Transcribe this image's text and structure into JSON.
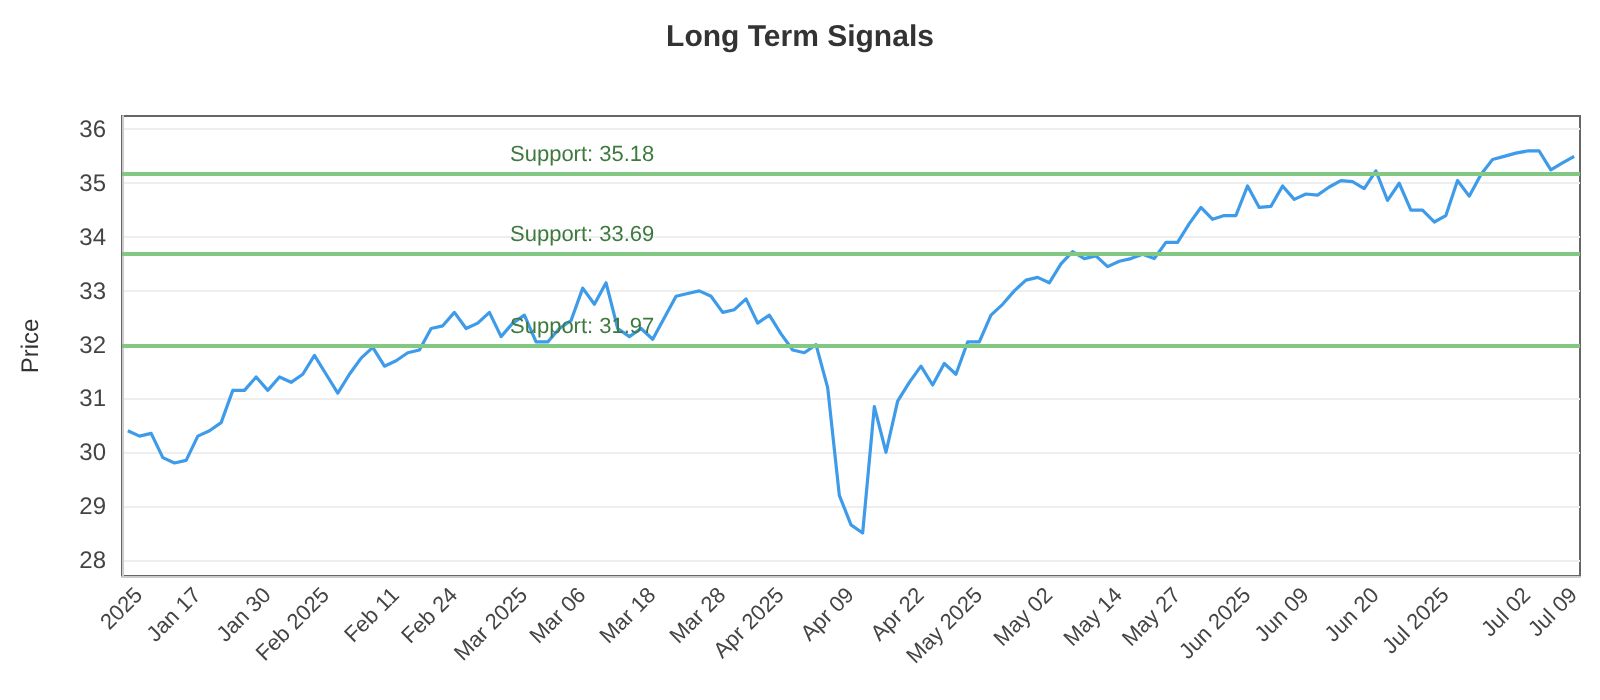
{
  "chart_data": {
    "type": "line",
    "title": "Long Term Signals",
    "ylabel": "Price",
    "categories": [
      null,
      "2025",
      null,
      null,
      null,
      null,
      "Jan 17",
      null,
      null,
      null,
      null,
      null,
      "Jan 30",
      null,
      null,
      null,
      null,
      "Feb 2025",
      null,
      null,
      null,
      null,
      null,
      "Feb 11",
      null,
      null,
      null,
      null,
      "Feb 24",
      null,
      null,
      null,
      null,
      null,
      "Mar 2025",
      null,
      null,
      null,
      null,
      "Mar 06",
      null,
      null,
      null,
      null,
      null,
      "Mar 18",
      null,
      null,
      null,
      null,
      null,
      "Mar 28",
      null,
      null,
      null,
      null,
      "Apr 2025",
      null,
      null,
      null,
      null,
      null,
      "Apr 09",
      null,
      null,
      null,
      null,
      null,
      "Apr 22",
      null,
      null,
      null,
      null,
      "May 2025",
      null,
      null,
      null,
      null,
      null,
      "May 02",
      null,
      null,
      null,
      null,
      null,
      "May 14",
      null,
      null,
      null,
      null,
      "May 27",
      null,
      null,
      null,
      null,
      null,
      "Jun 2025",
      null,
      null,
      null,
      null,
      "Jun 09",
      null,
      null,
      null,
      null,
      null,
      "Jun 20",
      null,
      null,
      null,
      null,
      null,
      "Jul 2025",
      null,
      null,
      null,
      null,
      null,
      null,
      "Jul 02",
      null,
      null,
      null,
      "Jul 09"
    ],
    "series": [
      {
        "color": "#3d9be9",
        "values": [
          30.4,
          30.3,
          30.35,
          29.9,
          29.8,
          29.85,
          30.3,
          30.4,
          30.55,
          31.15,
          31.15,
          31.4,
          31.15,
          31.4,
          31.3,
          31.45,
          31.8,
          31.45,
          31.1,
          31.45,
          31.75,
          31.95,
          31.6,
          31.7,
          31.85,
          31.9,
          32.3,
          32.35,
          32.6,
          32.3,
          32.4,
          32.6,
          32.15,
          32.4,
          32.55,
          32.05,
          32.05,
          32.3,
          32.45,
          33.05,
          32.75,
          33.15,
          32.3,
          32.15,
          32.3,
          32.1,
          32.5,
          32.9,
          32.95,
          33.0,
          32.9,
          32.6,
          32.65,
          32.85,
          32.4,
          32.55,
          32.2,
          31.9,
          31.85,
          32.0,
          31.2,
          29.2,
          28.65,
          28.5,
          30.85,
          30.0,
          30.95,
          31.3,
          31.6,
          31.25,
          31.65,
          31.45,
          32.05,
          32.05,
          32.55,
          32.75,
          33.0,
          33.2,
          33.25,
          33.15,
          33.5,
          33.73,
          33.6,
          33.65,
          33.45,
          33.55,
          33.6,
          33.68,
          33.6,
          33.9,
          33.9,
          34.25,
          34.55,
          34.33,
          34.4,
          34.4,
          34.95,
          34.55,
          34.57,
          34.95,
          34.7,
          34.8,
          34.78,
          34.93,
          35.05,
          35.03,
          34.9,
          35.23,
          34.68,
          35.0,
          34.5,
          34.5,
          34.28,
          34.4,
          35.05,
          34.76,
          35.16,
          35.44,
          35.5,
          35.56,
          35.6,
          35.6,
          35.25,
          35.38,
          35.5
        ]
      }
    ],
    "ylim": [
      27.7,
      36.25
    ],
    "yticks": [
      28,
      29,
      30,
      31,
      32,
      33,
      34,
      35,
      36
    ],
    "grid": "y",
    "marker": "none",
    "line_style": "solid",
    "ref_lines": [
      {
        "axis": "y",
        "value": 35.18,
        "label": "Support: 35.18",
        "color": "#82c882"
      },
      {
        "axis": "y",
        "value": 33.69,
        "label": "Support: 33.69",
        "color": "#82c882"
      },
      {
        "axis": "y",
        "value": 31.97,
        "label": "Support: 31.97",
        "color": "#82c882"
      }
    ]
  }
}
